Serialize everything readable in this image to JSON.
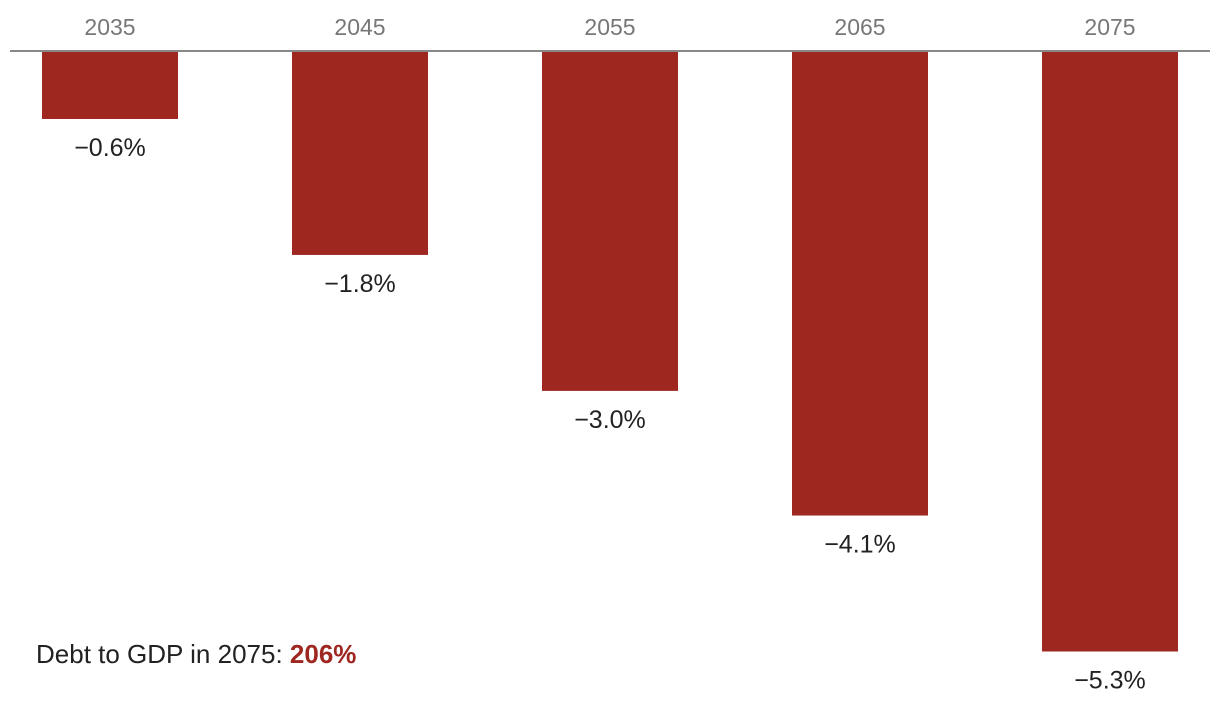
{
  "chart_data": {
    "type": "bar",
    "categories": [
      "2035",
      "2045",
      "2055",
      "2065",
      "2075"
    ],
    "values": [
      -0.6,
      -1.8,
      -3.0,
      -4.1,
      -5.3
    ],
    "value_labels": [
      "−0.6%",
      "−1.8%",
      "−3.0%",
      "−4.1%",
      "−5.3%"
    ],
    "ylim": [
      -6.0,
      0
    ],
    "category_axis_position": "top",
    "grid": false,
    "legend": "none",
    "bar_color": "#9e2720",
    "axis_color": "#888888"
  },
  "note": {
    "label": "Debt to GDP in 2075: ",
    "value": "206%",
    "value_color": "#9e2720"
  }
}
